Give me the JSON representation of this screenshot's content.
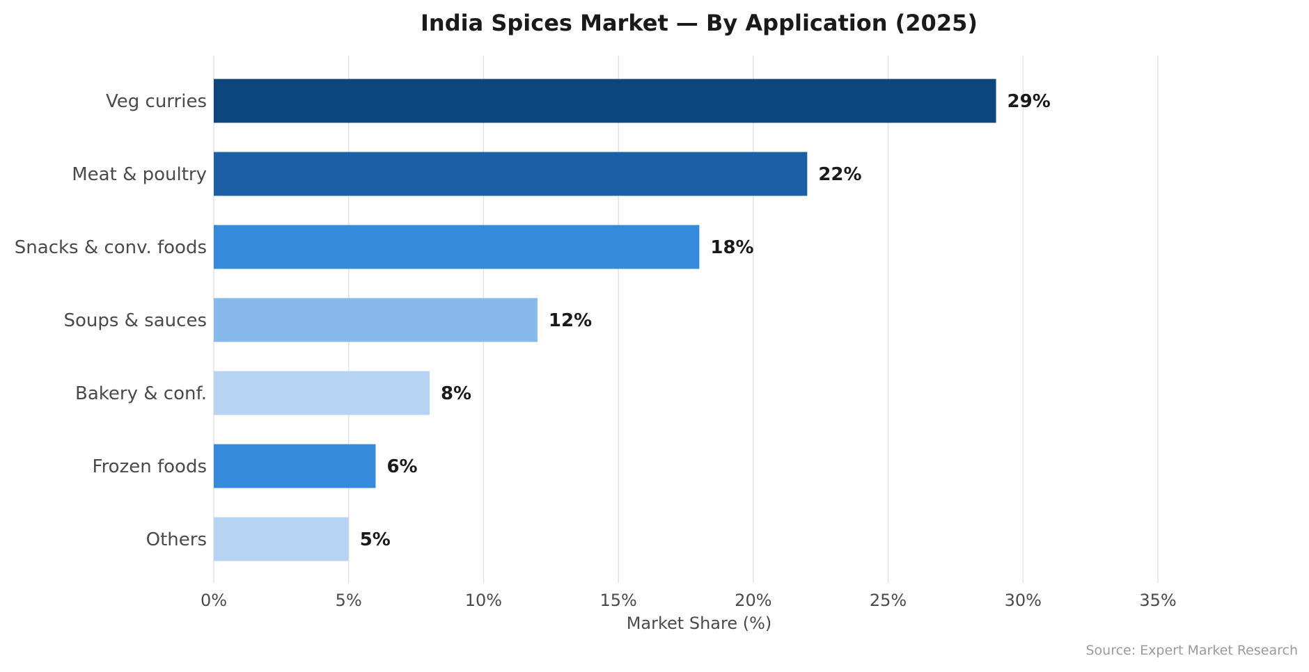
{
  "chart_data": {
    "type": "bar",
    "orientation": "horizontal",
    "title": "India Spices Market — By Application (2025)",
    "xlabel": "Market Share (%)",
    "ylabel": "",
    "xlim": [
      0,
      35
    ],
    "xticks": [
      0,
      5,
      10,
      15,
      20,
      25,
      30,
      35
    ],
    "tick_suffix": "%",
    "grid": "vertical",
    "categories": [
      "Veg curries",
      "Meat & poultry",
      "Snacks & conv. foods",
      "Soups & sauces",
      "Bakery & conf.",
      "Frozen foods",
      "Others"
    ],
    "values": [
      29,
      22,
      18,
      12,
      8,
      6,
      5
    ],
    "value_labels": [
      "29%",
      "22%",
      "18%",
      "12%",
      "8%",
      "6%",
      "5%"
    ],
    "colors": [
      "#0d467d",
      "#1a60a4",
      "#368adc",
      "#87b9ea",
      "#b6d4f2",
      "#368adc",
      "#b6d4f2"
    ],
    "source": "Source: Expert Market Research"
  }
}
